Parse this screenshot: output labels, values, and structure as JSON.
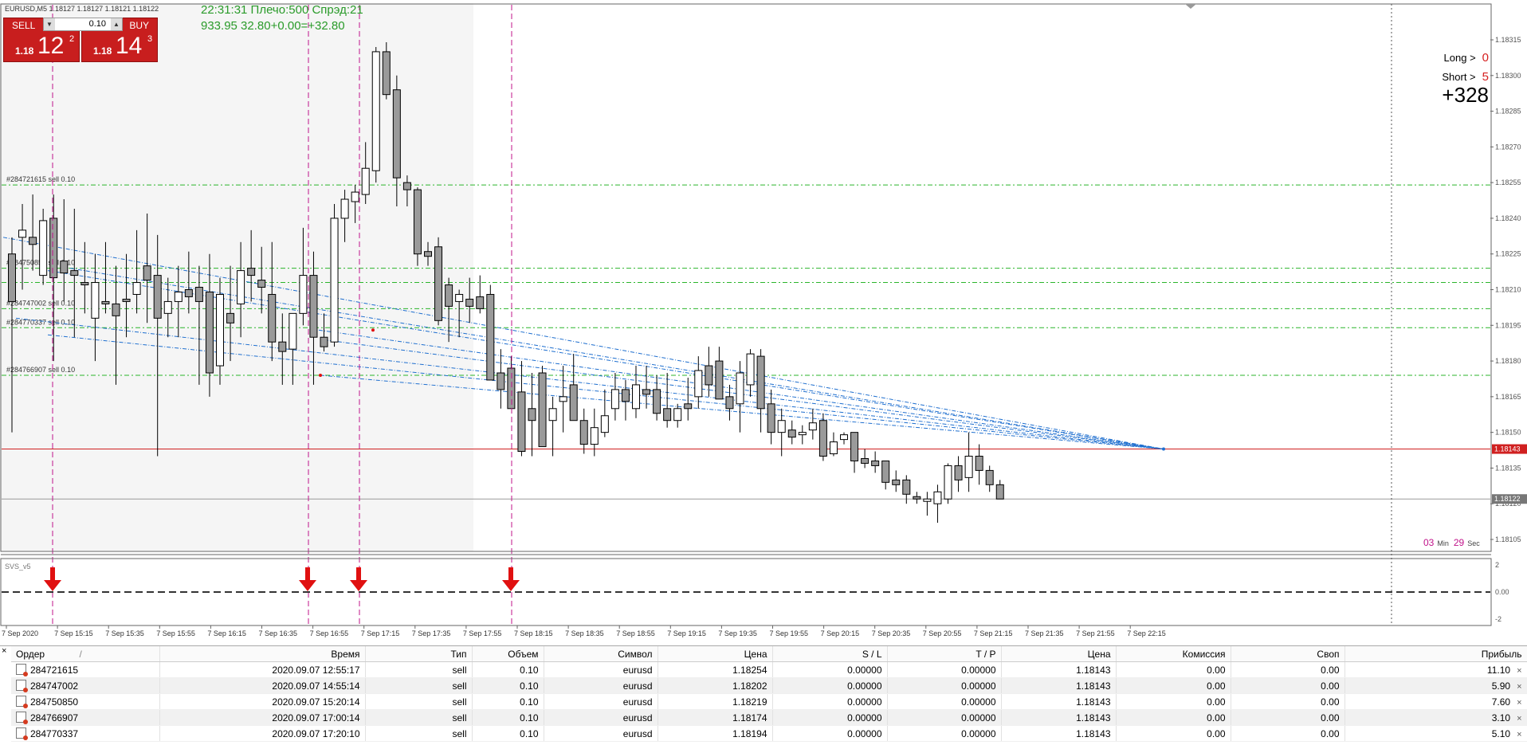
{
  "chart": {
    "symbol_label": "EURUSD,M5  1.18127 1.18127 1.18121 1.18122",
    "price_scale": [
      "1.18315",
      "1.18300",
      "1.18285",
      "1.18270",
      "1.18255",
      "1.18240",
      "1.18225",
      "1.18210",
      "1.18195",
      "1.18180",
      "1.18165",
      "1.18150",
      "1.18135",
      "1.18120",
      "1.18105"
    ],
    "price_range": [
      1.181,
      1.1832
    ],
    "current_bid_label": "1.18143",
    "last_price_label": "1.18122",
    "time_labels": [
      "7 Sep 2020",
      "7 Sep 15:15",
      "7 Sep 15:35",
      "7 Sep 15:55",
      "7 Sep 16:15",
      "7 Sep 16:35",
      "7 Sep 16:55",
      "7 Sep 17:15",
      "7 Sep 17:35",
      "7 Sep 17:55",
      "7 Sep 18:15",
      "7 Sep 18:35",
      "7 Sep 18:55",
      "7 Sep 19:15",
      "7 Sep 19:35",
      "7 Sep 19:55",
      "7 Sep 20:15",
      "7 Sep 20:35",
      "7 Sep 20:55",
      "7 Sep 21:15",
      "7 Sep 21:35",
      "7 Sep 21:55",
      "7 Sep 22:15"
    ],
    "order_lines": [
      {
        "label": "#284721615 sell 0.10",
        "price": 1.18254
      },
      {
        "label": "#284750850 sell 0.10",
        "price": 1.18219
      },
      {
        "label": "#284747002 sell 0.10",
        "price": 1.18202
      },
      {
        "label": "#284770337 sell 0.10",
        "price": 1.18194
      },
      {
        "label": "#284766907 sell 0.10",
        "price": 1.18174
      }
    ],
    "extra_level_price": 1.18213,
    "colors": {
      "bid_line": "#d02020",
      "order_line": "#2bb52b",
      "trade_line": "#1f6fcf",
      "vline": "#c0138a",
      "arrow": "#e01010",
      "bear": "#9a9a9a"
    }
  },
  "trade_panel": {
    "sell_label": "SELL",
    "buy_label": "BUY",
    "lot": "0.10",
    "sell_small": "1.18",
    "sell_big": "12",
    "sell_sup": "2",
    "buy_small": "1.18",
    "buy_big": "14",
    "buy_sup": "3"
  },
  "info": {
    "line1": "22:31:31 Плечо:500 Спрэд:21",
    "line2": "933.95     32.80+0.00=+32.80"
  },
  "stats": {
    "long_label": "Long >",
    "long_value": "0",
    "short_label": "Short >",
    "short_value": "5",
    "total": "+328"
  },
  "timer": {
    "min": "03",
    "min_unit": "Min",
    "sec": "29",
    "sec_unit": "Sec"
  },
  "subwindow": {
    "name": "SVS_v5",
    "scale": [
      "2",
      "0.00",
      "-2"
    ]
  },
  "terminal": {
    "close_label": "×",
    "columns": [
      "Ордер",
      "Время",
      "Тип",
      "Объем",
      "Символ",
      "Цена",
      "S / L",
      "T / P",
      "Цена",
      "Комиссия",
      "Своп",
      "Прибыль"
    ],
    "sort_marker": "/",
    "rows": [
      [
        "284721615",
        "2020.09.07 12:55:17",
        "sell",
        "0.10",
        "eurusd",
        "1.18254",
        "0.00000",
        "0.00000",
        "1.18143",
        "0.00",
        "0.00",
        "11.10"
      ],
      [
        "284747002",
        "2020.09.07 14:55:14",
        "sell",
        "0.10",
        "eurusd",
        "1.18202",
        "0.00000",
        "0.00000",
        "1.18143",
        "0.00",
        "0.00",
        "5.90"
      ],
      [
        "284750850",
        "2020.09.07 15:20:14",
        "sell",
        "0.10",
        "eurusd",
        "1.18219",
        "0.00000",
        "0.00000",
        "1.18143",
        "0.00",
        "0.00",
        "7.60"
      ],
      [
        "284766907",
        "2020.09.07 17:00:14",
        "sell",
        "0.10",
        "eurusd",
        "1.18174",
        "0.00000",
        "0.00000",
        "1.18143",
        "0.00",
        "0.00",
        "3.10"
      ],
      [
        "284770337",
        "2020.09.07 17:20:10",
        "sell",
        "0.10",
        "eurusd",
        "1.18194",
        "0.00000",
        "0.00000",
        "1.18143",
        "0.00",
        "0.00",
        "5.10"
      ]
    ],
    "row_close_label": "×"
  }
}
